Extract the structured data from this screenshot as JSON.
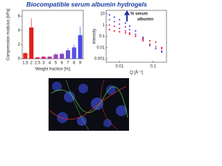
{
  "title": "Biocompatible serum albumin hydrogels",
  "chart_data": [
    {
      "type": "bar",
      "ylabel": "Compression modulus [kPa]",
      "xlabel": "Weight fraction [%]",
      "categories": [
        "1.5",
        "2",
        "2.5",
        "3",
        "4",
        "5",
        "6",
        "7",
        "8",
        "9"
      ],
      "values": [
        0.8,
        4.4,
        0.2,
        0.3,
        0.3,
        0.6,
        0.7,
        1.2,
        1.6,
        3.3
      ],
      "errors": [
        0.1,
        1.3,
        0.1,
        0.1,
        0.1,
        0.2,
        0.2,
        0.3,
        0.4,
        1.2
      ],
      "colors": [
        "#e8251f",
        "#e0201c",
        "#d6285a",
        "#c8307a",
        "#b03a9a",
        "#9a44b4",
        "#8048c8",
        "#6a4ed8",
        "#5a52e4",
        "#4a4ae8"
      ],
      "ylim": [
        0,
        6.8
      ],
      "yticks": [
        0,
        2,
        4,
        6
      ]
    },
    {
      "type": "scatter",
      "ylabel": "Intensity",
      "xlabel": "Q [Å⁻¹]",
      "log_x": true,
      "log_y": true,
      "legend_top": "% serum",
      "legend_bottom": "albumin",
      "x": [
        0.005,
        0.007,
        0.01,
        0.015,
        0.02,
        0.03,
        0.05,
        0.08,
        0.12,
        0.18
      ],
      "series": [
        {
          "color": "#3a3ae0",
          "values": [
            8,
            5,
            3,
            1.5,
            0.8,
            0.3,
            0.08,
            0.02,
            0.008,
            0.004
          ]
        },
        {
          "color": "#8a40c8",
          "values": [
            3,
            2,
            1.2,
            0.7,
            0.4,
            0.15,
            0.05,
            0.015,
            0.008,
            0.005
          ]
        },
        {
          "color": "#d83090",
          "values": [
            1,
            0.8,
            0.5,
            0.3,
            0.2,
            0.1,
            0.04,
            0.02,
            0.012,
            0.008
          ]
        },
        {
          "color": "#e82020",
          "values": [
            0.4,
            0.3,
            0.25,
            0.2,
            0.15,
            0.1,
            0.06,
            0.04,
            0.03,
            0.01
          ]
        }
      ],
      "xlim": [
        0.004,
        0.25
      ],
      "ylim": [
        0.0005,
        20
      ],
      "xticks": [
        0.01,
        0.1
      ],
      "yticks": [
        0.001,
        0.01,
        0.1,
        1,
        10
      ]
    }
  ]
}
